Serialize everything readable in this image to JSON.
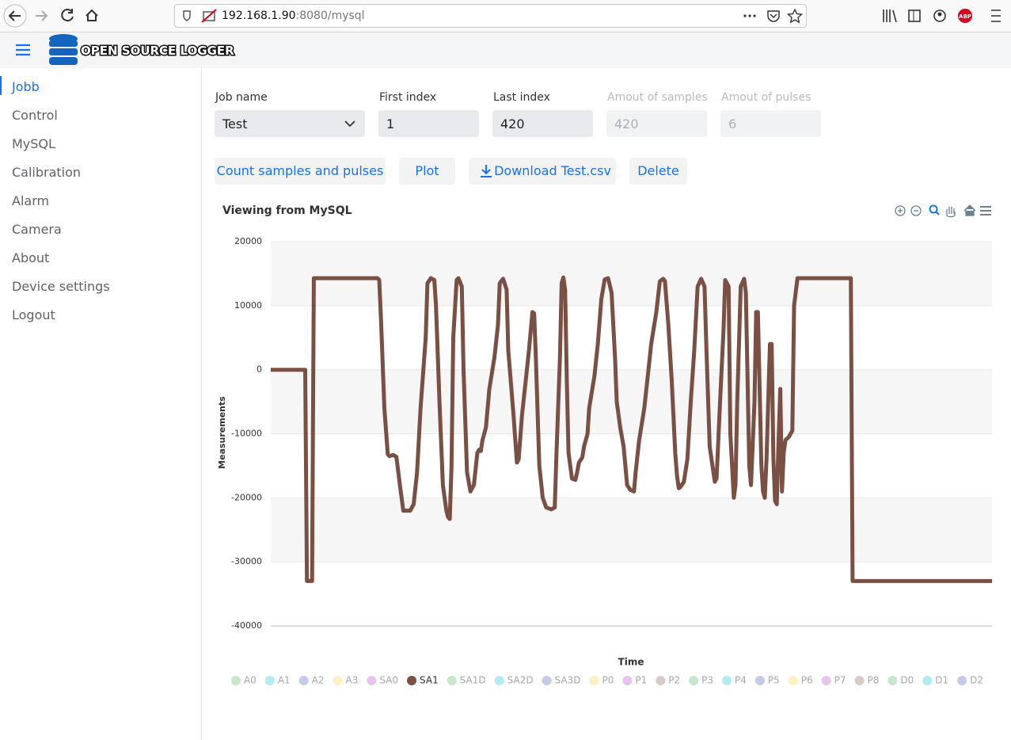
{
  "browser": {
    "url_host": "192.168.1.90",
    "url_rest": ":8080/mysql"
  },
  "header": {
    "title": "OPEN SOURCE LOGGER"
  },
  "nav": {
    "items": [
      "Jobb",
      "Control",
      "MySQL",
      "Calibration",
      "Alarm",
      "Camera",
      "About",
      "Device settings",
      "Logout"
    ],
    "active": 0
  },
  "form": {
    "fields": [
      {
        "label": "Job name",
        "value": "Test",
        "select": true
      },
      {
        "label": "First index",
        "value": 1
      },
      {
        "label": "Last index",
        "value": 420
      },
      {
        "label": "Amout of samples",
        "value": 420,
        "disabled": true
      },
      {
        "label": "Amout of pulses",
        "value": 6,
        "disabled": true
      }
    ]
  },
  "buttons": [
    "Count samples and pulses",
    "Plot",
    "Download Test.csv",
    "Delete"
  ],
  "chart_data": {
    "type": "line",
    "title": "Viewing from MySQL",
    "y_label": "Measurements",
    "x_label": "Time",
    "xlim": [
      1,
      420
    ],
    "ylim": [
      -40000,
      20000
    ],
    "yticks": [
      -40000,
      -30000,
      -20000,
      -10000,
      0,
      10000,
      20000
    ],
    "grid": true,
    "x": [
      1,
      21,
      22,
      25,
      26,
      63,
      64,
      65,
      67,
      69,
      70,
      72,
      74,
      76,
      78,
      82,
      84,
      86,
      88,
      91,
      92,
      94,
      96,
      97,
      99,
      101,
      103,
      104,
      105,
      106,
      107,
      109,
      110,
      112,
      113,
      115,
      117,
      119,
      121,
      122,
      123,
      124,
      126,
      128,
      131,
      133,
      134,
      136,
      138,
      139,
      142,
      144,
      145,
      147,
      149,
      151,
      152,
      153,
      154,
      155,
      157,
      159,
      161,
      164,
      166,
      167,
      169,
      170,
      171,
      172,
      173,
      174,
      176,
      178,
      179,
      180,
      182,
      183,
      185,
      186,
      189,
      191,
      193,
      195,
      197,
      199,
      201,
      202,
      204,
      206,
      208,
      210,
      212,
      213,
      215,
      218,
      220,
      222,
      225,
      227,
      229,
      230,
      232,
      234,
      236,
      237,
      238,
      239,
      241,
      243,
      245,
      247,
      249,
      251,
      253,
      254,
      256,
      259,
      260,
      262,
      264,
      265,
      267,
      268,
      270,
      271,
      272,
      274,
      276,
      277,
      279,
      280,
      282,
      283,
      284,
      286,
      287,
      288,
      289,
      291,
      292,
      293,
      294,
      295,
      296,
      297,
      298,
      299,
      300,
      302,
      304,
      305,
      307,
      338,
      339,
      420
    ],
    "series": [
      {
        "name": "A0",
        "color": "#c8e6c9",
        "hidden": true
      },
      {
        "name": "A1",
        "color": "#b2ebf2",
        "hidden": true
      },
      {
        "name": "A2",
        "color": "#c5cae9",
        "hidden": true
      },
      {
        "name": "A3",
        "color": "#fff1c1",
        "hidden": true
      },
      {
        "name": "SA0",
        "color": "#e7c6ee",
        "hidden": true
      },
      {
        "name": "SA1",
        "color": "#7a5045",
        "values": [
          0,
          0,
          -33000,
          -33000,
          14300,
          14300,
          14000,
          8000,
          -6000,
          -13200,
          -13500,
          -13300,
          -13600,
          -18000,
          -22000,
          -22000,
          -21000,
          -16000,
          -6000,
          5000,
          13500,
          14300,
          14000,
          10000,
          -5000,
          -18000,
          -22000,
          -23000,
          -23300,
          -15000,
          5000,
          14000,
          14300,
          13000,
          0,
          -16000,
          -19000,
          -18000,
          -13000,
          -12500,
          -12700,
          -11000,
          -9000,
          -3000,
          2000,
          7000,
          13500,
          14200,
          12500,
          3000,
          -7000,
          -14500,
          -14000,
          -7000,
          -2000,
          3000,
          6000,
          9000,
          8800,
          2000,
          -15000,
          -20000,
          -21500,
          -21800,
          -21500,
          -13000,
          2000,
          13500,
          14400,
          12500,
          -2000,
          -13000,
          -17000,
          -17200,
          -16000,
          -14500,
          -13700,
          -12000,
          -10000,
          -6000,
          -1000,
          4000,
          11000,
          14100,
          14300,
          12000,
          2000,
          -5000,
          -9000,
          -12000,
          -18000,
          -18800,
          -19000,
          -16000,
          -11000,
          -6000,
          -1000,
          4000,
          9000,
          13800,
          14200,
          13800,
          7000,
          -2000,
          -13000,
          -16500,
          -18500,
          -18300,
          -17500,
          -14000,
          -5000,
          3000,
          13000,
          14200,
          13000,
          4000,
          -12000,
          -17500,
          -17000,
          -5000,
          6000,
          14000,
          13000,
          -10000,
          -20000,
          -18000,
          -5000,
          13000,
          14200,
          12000,
          -15000,
          -18000,
          -5000,
          9000,
          9000,
          -15000,
          -19000,
          -20000,
          -14000,
          4000,
          4000,
          -14000,
          -20500,
          -21000,
          -11000,
          -3000,
          -19000,
          -13000,
          -11000,
          -10500,
          -9500,
          10000,
          14300,
          14300,
          -33000,
          -33000
        ]
      },
      {
        "name": "SA1D",
        "color": "#c8e6c9",
        "hidden": true
      },
      {
        "name": "SA2D",
        "color": "#b2ebf2",
        "hidden": true
      },
      {
        "name": "SA3D",
        "color": "#c5cae9",
        "hidden": true
      },
      {
        "name": "P0",
        "color": "#fff1c1",
        "hidden": true
      },
      {
        "name": "P1",
        "color": "#e7c6ee",
        "hidden": true
      },
      {
        "name": "P2",
        "color": "#d7ccc8",
        "hidden": true
      },
      {
        "name": "P3",
        "color": "#c8e6c9",
        "hidden": true
      },
      {
        "name": "P4",
        "color": "#b2ebf2",
        "hidden": true
      },
      {
        "name": "P5",
        "color": "#c5cae9",
        "hidden": true
      },
      {
        "name": "P6",
        "color": "#fff1c1",
        "hidden": true
      },
      {
        "name": "P7",
        "color": "#e7c6ee",
        "hidden": true
      },
      {
        "name": "P8",
        "color": "#d7ccc8",
        "hidden": true
      },
      {
        "name": "D0",
        "color": "#c8e6c9",
        "hidden": true
      },
      {
        "name": "D1",
        "color": "#b2ebf2",
        "hidden": true
      },
      {
        "name": "D2",
        "color": "#c5cae9",
        "hidden": true
      }
    ]
  }
}
